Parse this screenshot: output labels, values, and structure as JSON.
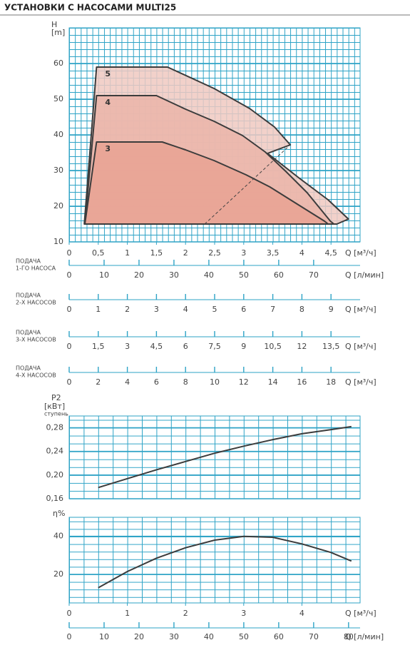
{
  "chart_data": [
    {
      "type": "area",
      "title": "УСТАНОВКИ С НАСОСАМИ MULTI25",
      "y_label": "H",
      "y_unit": "[m]",
      "x_label": "Q [м³/ч]",
      "xlim": [
        0,
        5
      ],
      "xticks": [
        0,
        {
          "value": 0.5,
          "label": "0,5"
        },
        1,
        {
          "value": 1.5,
          "label": "1,5"
        },
        2,
        {
          "value": 2.5,
          "label": "2,5"
        },
        3,
        {
          "value": 3.5,
          "label": "3,5"
        },
        4,
        {
          "value": 4.5,
          "label": "4,5"
        }
      ],
      "ylim": [
        10,
        70
      ],
      "yticks": [
        10,
        20,
        30,
        40,
        50,
        60
      ],
      "grid": true,
      "series": [
        {
          "name": "5",
          "color": "#f0c9c1",
          "x": [
            0.26,
            0.47,
            1.69,
            2.49,
            3.1,
            3.53,
            3.8,
            3.41,
            3.96,
            4.45,
            4.8,
            4.6
          ],
          "values": [
            15,
            59,
            59,
            53,
            47.4,
            42.2,
            37.2,
            34.8,
            27.8,
            21.8,
            16.4,
            15
          ]
        },
        {
          "name": "4",
          "color": "#ebb5a9",
          "x": [
            0.27,
            0.47,
            1.5,
            2.0,
            2.49,
            2.98,
            3.37,
            3.72,
            4.09,
            4.49,
            4.55
          ],
          "values": [
            15,
            51,
            51,
            47.2,
            43.8,
            39.8,
            35.2,
            29.8,
            23.8,
            15.8,
            15
          ]
        },
        {
          "name": "3",
          "color": "#e9a293",
          "x": [
            0.27,
            0.47,
            1.6,
            2.0,
            2.49,
            3.04,
            3.45,
            3.9,
            4.39,
            4.45
          ],
          "values": [
            15,
            38,
            38,
            35.8,
            32.8,
            28.8,
            25.4,
            20.8,
            15.8,
            15
          ]
        }
      ],
      "limit_line": {
        "x": [
          2.33,
          3.8
        ],
        "values": [
          15,
          37.2
        ],
        "dashed": true
      },
      "flow_axes": [
        {
          "label": [
            "ПОДАЧА",
            "1-ГО НАСОСА"
          ],
          "x_label": "Q [л/мин]",
          "xlim": [
            0,
            83.3
          ],
          "xticks": [
            0,
            10,
            20,
            30,
            40,
            50,
            60,
            70
          ]
        },
        {
          "label": [
            "ПОДАЧА",
            "2-Х НАСОСОВ"
          ],
          "x_label": "Q [м³/ч]",
          "xlim": [
            0,
            10
          ],
          "xticks": [
            0,
            1,
            2,
            3,
            4,
            5,
            6,
            7,
            8,
            9
          ]
        },
        {
          "label": [
            "ПОДАЧА",
            "3-Х НАСОСОВ"
          ],
          "x_label": "Q [м³/ч]",
          "xlim": [
            0,
            15
          ],
          "xticks": [
            0,
            {
              "value": 1.5,
              "label": "1,5"
            },
            3,
            {
              "value": 4.5,
              "label": "4,5"
            },
            6,
            {
              "value": 7.5,
              "label": "7,5"
            },
            9,
            {
              "value": 10.5,
              "label": "10,5"
            },
            12,
            {
              "value": 13.5,
              "label": "13,5"
            }
          ]
        },
        {
          "label": [
            "ПОДАЧА",
            "4-Х НАСОСОВ"
          ],
          "x_label": "Q [м³/ч]",
          "xlim": [
            0,
            20
          ],
          "xticks": [
            0,
            2,
            4,
            6,
            8,
            10,
            12,
            14,
            16,
            18
          ]
        }
      ]
    },
    {
      "type": "line",
      "y_label": "P2",
      "y_unit": "[кВт]",
      "y_sublabel": "ступень",
      "xlim": [
        0,
        5
      ],
      "ylim": [
        0.16,
        0.3
      ],
      "yticks": [
        {
          "value": 0.16,
          "label": "0,16"
        },
        {
          "value": 0.2,
          "label": "0,20"
        },
        {
          "value": 0.24,
          "label": "0,24"
        },
        {
          "value": 0.28,
          "label": "0,28"
        }
      ],
      "grid": true,
      "series": [
        {
          "color": "#3c3c3c",
          "x": [
            0.5,
            1,
            1.5,
            2,
            2.5,
            3,
            3.5,
            4,
            4.5,
            4.85
          ],
          "values": [
            0.179,
            0.194,
            0.209,
            0.223,
            0.237,
            0.249,
            0.26,
            0.27,
            0.277,
            0.282
          ]
        }
      ]
    },
    {
      "type": "line",
      "y_label": "η%",
      "xlim": [
        0,
        5
      ],
      "ylim": [
        5,
        50
      ],
      "yticks": [
        20,
        40
      ],
      "grid": true,
      "x_label": "Q [м³/ч]",
      "xticks": [
        0,
        1,
        2,
        3,
        4
      ],
      "x2_label": "Q [л/мин]",
      "x2lim": [
        0,
        83.3
      ],
      "x2ticks": [
        0,
        10,
        20,
        30,
        40,
        50,
        60,
        70,
        80
      ],
      "series": [
        {
          "color": "#3c3c3c",
          "x": [
            0.5,
            1,
            1.5,
            2,
            2.5,
            3,
            3.5,
            4,
            4.5,
            4.85
          ],
          "values": [
            13,
            21.5,
            28.5,
            34,
            38,
            40,
            39.5,
            36,
            31.5,
            27
          ]
        }
      ]
    }
  ]
}
